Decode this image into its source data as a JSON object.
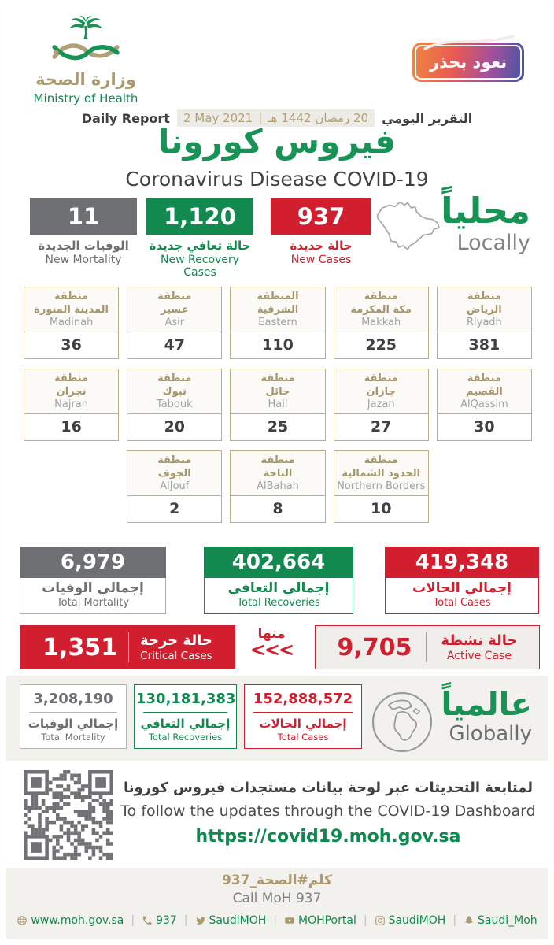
{
  "colors": {
    "green": "#128a4f",
    "red": "#d11f2f",
    "gray": "#6e6f72",
    "tan": "#ab9a6e"
  },
  "brand": {
    "name_ar": "وزارة الصحة",
    "name_en": "Ministry of Health",
    "badge": "نعود بحذر"
  },
  "report": {
    "label_en": "Daily Report",
    "date_en": "2 May 2021",
    "date_sep": "|",
    "date_ar": "20 رمضان 1442 هـ",
    "label_ar": "التقرير اليومي",
    "title_ar": "فيروس كورونا",
    "title_en": "Coronavirus Disease COVID-19"
  },
  "locally": {
    "heading_ar": "محلياً",
    "heading_en": "Locally",
    "new_mortality": {
      "value": "11",
      "ar": "الوفيات الجديدة",
      "en": "New Mortality"
    },
    "new_recoveries": {
      "value": "1,120",
      "ar": "حالة تعافي جديدة",
      "en": "New Recovery Cases"
    },
    "new_cases": {
      "value": "937",
      "ar": "حالة جديدة",
      "en": "New Cases"
    }
  },
  "regions": [
    {
      "ar1": "منطقة",
      "ar2": "المدينة المنورة",
      "en": "Madinah",
      "value": "36"
    },
    {
      "ar1": "منطقة",
      "ar2": "عسير",
      "en": "Asir",
      "value": "47"
    },
    {
      "ar1": "المنطقة",
      "ar2": "الشرقية",
      "en": "Eastern",
      "value": "110"
    },
    {
      "ar1": "منطقة",
      "ar2": "مكة المكرمة",
      "en": "Makkah",
      "value": "225"
    },
    {
      "ar1": "منطقة",
      "ar2": "الرياض",
      "en": "Riyadh",
      "value": "381"
    },
    {
      "ar1": "منطقة",
      "ar2": "نجران",
      "en": "Najran",
      "value": "16"
    },
    {
      "ar1": "منطقة",
      "ar2": "تبوك",
      "en": "Tabouk",
      "value": "20"
    },
    {
      "ar1": "منطقة",
      "ar2": "حائل",
      "en": "Hail",
      "value": "25"
    },
    {
      "ar1": "منطقة",
      "ar2": "جازان",
      "en": "Jazan",
      "value": "27"
    },
    {
      "ar1": "منطقة",
      "ar2": "القصيم",
      "en": "AlQassim",
      "value": "30"
    },
    {
      "ar1": "منطقة",
      "ar2": "الجوف",
      "en": "AlJouf",
      "value": "2"
    },
    {
      "ar1": "منطقة",
      "ar2": "الباحة",
      "en": "AlBahah",
      "value": "8"
    },
    {
      "ar1": "منطقة",
      "ar2": "الحدود الشمالية",
      "en": "Northern Borders",
      "value": "10"
    }
  ],
  "totals_local": {
    "mortality": {
      "value": "6,979",
      "ar": "إجمالي الوفيات",
      "en": "Total Mortality"
    },
    "recoveries": {
      "value": "402,664",
      "ar": "إجمالي التعافي",
      "en": "Total Recoveries"
    },
    "cases": {
      "value": "419,348",
      "ar": "إجمالي الحالات",
      "en": "Total Cases"
    }
  },
  "critical": {
    "value": "1,351",
    "ar": "حالة حرجة",
    "en": "Critical Cases"
  },
  "of_which": {
    "label_ar": "منها",
    "arrows": "<<<"
  },
  "active": {
    "value": "9,705",
    "ar": "حالة نشطة",
    "en": "Active Case"
  },
  "globally": {
    "heading_ar": "عالمياً",
    "heading_en": "Globally",
    "mortality": {
      "value": "3,208,190",
      "ar": "إجمالي الوفيات",
      "en": "Total Mortality"
    },
    "recoveries": {
      "value": "130,181,383",
      "ar": "إجمالي التعافي",
      "en": "Total Recoveries"
    },
    "cases": {
      "value": "152,888,572",
      "ar": "إجمالي الحالات",
      "en": "Total Cases"
    }
  },
  "dashboard": {
    "ar": "لمتابعة التحديثات عبر لوحة بيانات مستجدات فيروس كورونا",
    "en": "To follow the updates through the COVID-19 Dashboard",
    "url": "https://covid19.moh.gov.sa"
  },
  "hotline": {
    "ar": "كلم#الصحة_937",
    "en": "Call MoH 937"
  },
  "footer_links": [
    {
      "icon": "globe",
      "label": "www.moh.gov.sa"
    },
    {
      "icon": "phone",
      "label": "937"
    },
    {
      "icon": "twitter",
      "label": "SaudiMOH"
    },
    {
      "icon": "youtube",
      "label": "MOHPortal"
    },
    {
      "icon": "instagram",
      "label": "SaudiMOH"
    },
    {
      "icon": "snapchat",
      "label": "Saudi_Moh"
    }
  ]
}
